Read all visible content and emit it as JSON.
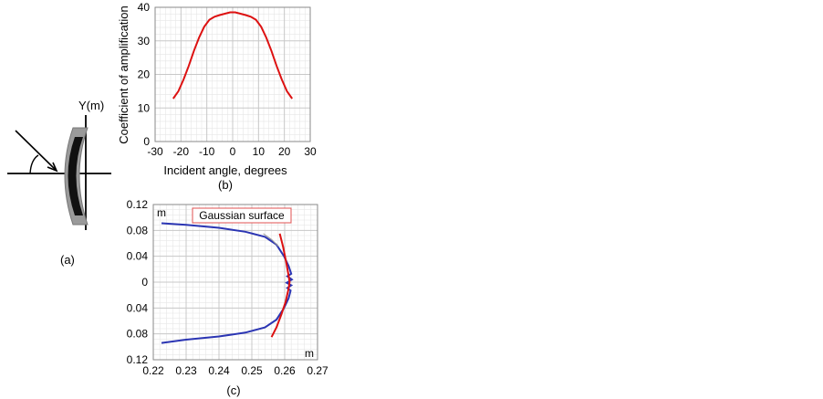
{
  "panel_a": {
    "axis_label": "Y(m)",
    "caption": "(a)"
  },
  "panel_b": {
    "caption": "(b)"
  },
  "panel_c": {
    "caption": "(c)",
    "annotation": "Gaussian surface",
    "unit_y": "m",
    "unit_x": "m"
  },
  "colors": {
    "red_curve": "#dd1111",
    "blue_curve": "#2b35b3",
    "grid": "#c8c8c8",
    "annotation_border": "#e05050"
  },
  "chart_data": [
    {
      "type": "line",
      "panel": "b",
      "xlabel": "Incident angle, degrees",
      "ylabel": "Coefficient of amplification",
      "xlim": [
        -30,
        30
      ],
      "ylim": [
        0,
        40
      ],
      "xticks": [
        -30,
        -20,
        -10,
        0,
        10,
        20,
        30
      ],
      "yticks": [
        0,
        10,
        20,
        30,
        40
      ],
      "grid": true,
      "series": [
        {
          "x": [
            -23,
            -21,
            -19,
            -17,
            -15,
            -13,
            -11,
            -9,
            -7,
            -5,
            -3,
            -1,
            0,
            1,
            3,
            5,
            7,
            9,
            11,
            13,
            15,
            17,
            19,
            21,
            23
          ],
          "y": [
            12.8,
            15,
            18.5,
            22.5,
            27,
            31,
            34.2,
            36.3,
            37.2,
            37.7,
            38.1,
            38.5,
            38.5,
            38.5,
            38.1,
            37.7,
            37.2,
            36.3,
            34.2,
            31,
            27,
            22.5,
            18.5,
            15,
            12.8
          ]
        }
      ]
    },
    {
      "type": "line",
      "panel": "c",
      "xlim": [
        0.22,
        0.27
      ],
      "ylim": [
        -0.12,
        0.12
      ],
      "xticks": [
        0.22,
        0.23,
        0.24,
        0.25,
        0.26,
        0.27
      ],
      "xtick_labels": [
        "0.22",
        "0.23",
        "0.24",
        "0.25",
        "0.26",
        "0.27"
      ],
      "yticks": [
        0.12,
        0.08,
        0.04,
        0,
        -0.04,
        -0.08,
        -0.12
      ],
      "ytick_labels": [
        "0.12",
        "0.08",
        "0.04",
        "0",
        "0.04",
        "0.08",
        "0.12"
      ],
      "grid": true,
      "series": [
        {
          "color": "blue",
          "x": [
            0.2225,
            0.23,
            0.24,
            0.248,
            0.254,
            0.2575,
            0.2598,
            0.2612,
            0.262,
            0.2608,
            0.2622,
            0.2606,
            0.262,
            0.2608,
            0.2618,
            0.2612,
            0.2598,
            0.2575,
            0.254,
            0.248,
            0.24,
            0.23,
            0.2225
          ],
          "y": [
            0.091,
            0.0885,
            0.084,
            0.078,
            0.07,
            0.058,
            0.04,
            0.025,
            0.013,
            0.009,
            0.004,
            -0.001,
            -0.005,
            -0.009,
            -0.013,
            -0.025,
            -0.04,
            -0.058,
            -0.07,
            -0.078,
            -0.084,
            -0.089,
            -0.094
          ]
        },
        {
          "color": "red",
          "x": [
            0.2585,
            0.2595,
            0.2605,
            0.2612,
            0.2615,
            0.2612,
            0.2603,
            0.259,
            0.2575,
            0.256
          ],
          "y": [
            0.075,
            0.055,
            0.03,
            0.01,
            0,
            -0.01,
            -0.03,
            -0.05,
            -0.07,
            -0.085
          ]
        },
        {
          "color": "gray",
          "x": [
            0.2535,
            0.256,
            0.2582
          ],
          "y": [
            0.075,
            0.066,
            0.055
          ]
        }
      ]
    }
  ]
}
